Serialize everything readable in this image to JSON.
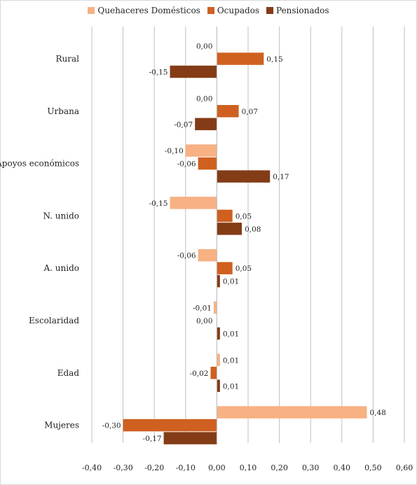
{
  "chart_data": {
    "type": "bar",
    "orientation": "horizontal",
    "categories": [
      "Rural",
      "Urbana",
      "Apoyos económicos",
      "N. unido",
      "A. unido",
      "Escolaridad",
      "Edad",
      "Mujeres"
    ],
    "series": [
      {
        "name": "Quehaceres Domésticos",
        "color": "#f7b183",
        "values": [
          0.0,
          0.0,
          -0.1,
          -0.15,
          -0.06,
          -0.01,
          0.01,
          0.48
        ],
        "labels": [
          "0,00",
          "0,00",
          "-0,10",
          "-0,15",
          "-0,06",
          "-0,01",
          "0,01",
          "0,48"
        ]
      },
      {
        "name": "Ocupados",
        "color": "#cf6020",
        "values": [
          0.15,
          0.07,
          -0.06,
          0.05,
          0.05,
          0.0,
          -0.02,
          -0.3
        ],
        "labels": [
          "0,15",
          "0,07",
          "-0,06",
          "0,05",
          "0,05",
          "0,00",
          "-0,02",
          "-0,30"
        ]
      },
      {
        "name": "Pensionados",
        "color": "#843c16",
        "values": [
          -0.15,
          -0.07,
          0.17,
          0.08,
          0.01,
          0.01,
          0.01,
          -0.17
        ],
        "labels": [
          "-0,15",
          "-0,07",
          "0,17",
          "0,08",
          "0,01",
          "0,01",
          "0,01",
          "-0,17"
        ]
      }
    ],
    "xlim": [
      -0.4,
      0.6
    ],
    "ticks": [
      -0.4,
      -0.3,
      -0.2,
      -0.1,
      0.0,
      0.1,
      0.2,
      0.3,
      0.4,
      0.5,
      0.6
    ],
    "tick_labels": [
      "-0,40",
      "-0,30",
      "-0,20",
      "-0,10",
      "0,00",
      "0,10",
      "0,20",
      "0,30",
      "0,40",
      "0,50",
      "0,60"
    ],
    "grid": true,
    "legend_position": "top"
  }
}
